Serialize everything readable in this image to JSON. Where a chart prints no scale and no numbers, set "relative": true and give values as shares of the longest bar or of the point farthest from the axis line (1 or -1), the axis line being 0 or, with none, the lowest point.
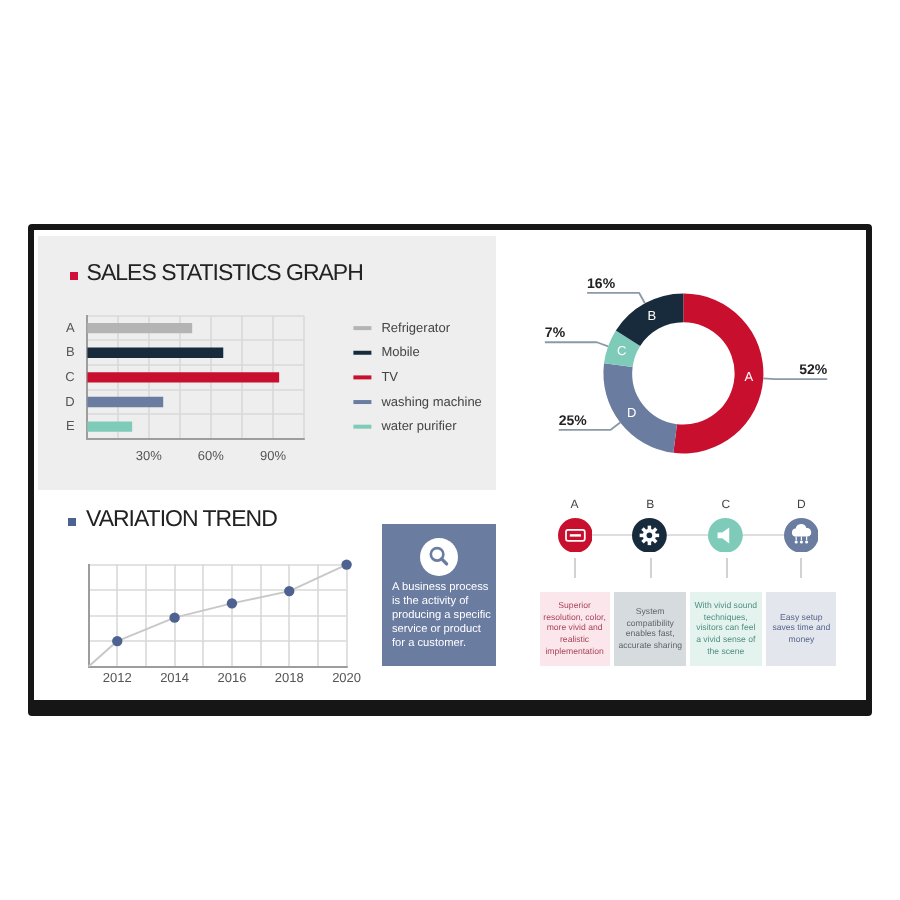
{
  "chart_data": [
    {
      "type": "bar",
      "orientation": "horizontal",
      "title": "SALES STATISTICS GRAPH",
      "categories": [
        "A",
        "B",
        "C",
        "D",
        "E"
      ],
      "series": [
        {
          "name": "Refrigerator",
          "color": "#b4b4b4",
          "values": [
            51,
            null,
            null,
            null,
            null
          ]
        },
        {
          "name": "Mobile",
          "color": "#172b3d",
          "values": [
            null,
            66,
            null,
            null,
            null
          ]
        },
        {
          "name": "TV",
          "color": "#c8102e",
          "values": [
            null,
            null,
            93,
            null,
            null
          ]
        },
        {
          "name": "washing machine",
          "color": "#6b7ca1",
          "values": [
            null,
            null,
            null,
            37,
            null
          ]
        },
        {
          "name": "water purifier",
          "color": "#7fcbb9",
          "values": [
            null,
            null,
            null,
            null,
            22
          ]
        }
      ],
      "xlim": [
        0,
        105
      ],
      "xticks": [
        {
          "value": 0,
          "label": null
        },
        {
          "value": 15,
          "label": null
        },
        {
          "value": 30,
          "label": "30%"
        },
        {
          "value": 45,
          "label": null
        },
        {
          "value": 60,
          "label": "60%"
        },
        {
          "value": 75,
          "label": null
        },
        {
          "value": 90,
          "label": "90%"
        },
        {
          "value": 105,
          "label": null
        }
      ],
      "grid": true,
      "legend": "right"
    },
    {
      "type": "donut",
      "categories": [
        "A",
        "D",
        "C",
        "B"
      ],
      "values": [
        52,
        25,
        7,
        16
      ],
      "colors": [
        "#c8102e",
        "#6b7ca1",
        "#7fcbb9",
        "#172b3d"
      ],
      "value_labels": [
        "52%",
        "25%",
        "7%",
        "16%"
      ]
    },
    {
      "type": "line",
      "title": "VARIATION TREND",
      "relative": true,
      "xlim": [
        2011,
        2020
      ],
      "xticks": [
        {
          "value": 2011,
          "label": null
        },
        2012,
        {
          "value": 2013,
          "label": null
        },
        2014,
        {
          "value": 2015,
          "label": null
        },
        2016,
        {
          "value": 2017,
          "label": null
        },
        2018,
        {
          "value": 2019,
          "label": null
        },
        2020
      ],
      "grid": true,
      "series": [
        {
          "type": "line",
          "color": "#c8c8c8",
          "marker": "none",
          "x": [
            2011,
            2012,
            2014,
            2016,
            2018,
            2020
          ],
          "values": [
            0,
            0.25,
            0.48,
            0.62,
            0.74,
            1
          ]
        },
        {
          "type": "scatter",
          "color": "#4e6291",
          "marker": "circle",
          "x": [
            2012,
            2014,
            2016,
            2018,
            2020
          ],
          "values": [
            0.25,
            0.48,
            0.62,
            0.74,
            1
          ]
        }
      ]
    },
    {
      "type": "other",
      "annotations": [
        "A business process is the activity of producing a specific service or product for a customer."
      ]
    },
    {
      "type": "other",
      "categories": [
        "A",
        "B",
        "C",
        "D"
      ],
      "annotations": [
        "Superior resolution, color, more vivid and realistic implementation",
        "System compatibility enables fast, accurate sharing",
        "With vivid sound techniques, visitors can feel a vivid sense of the scene",
        "Easy setup saves time and money"
      ]
    }
  ]
}
